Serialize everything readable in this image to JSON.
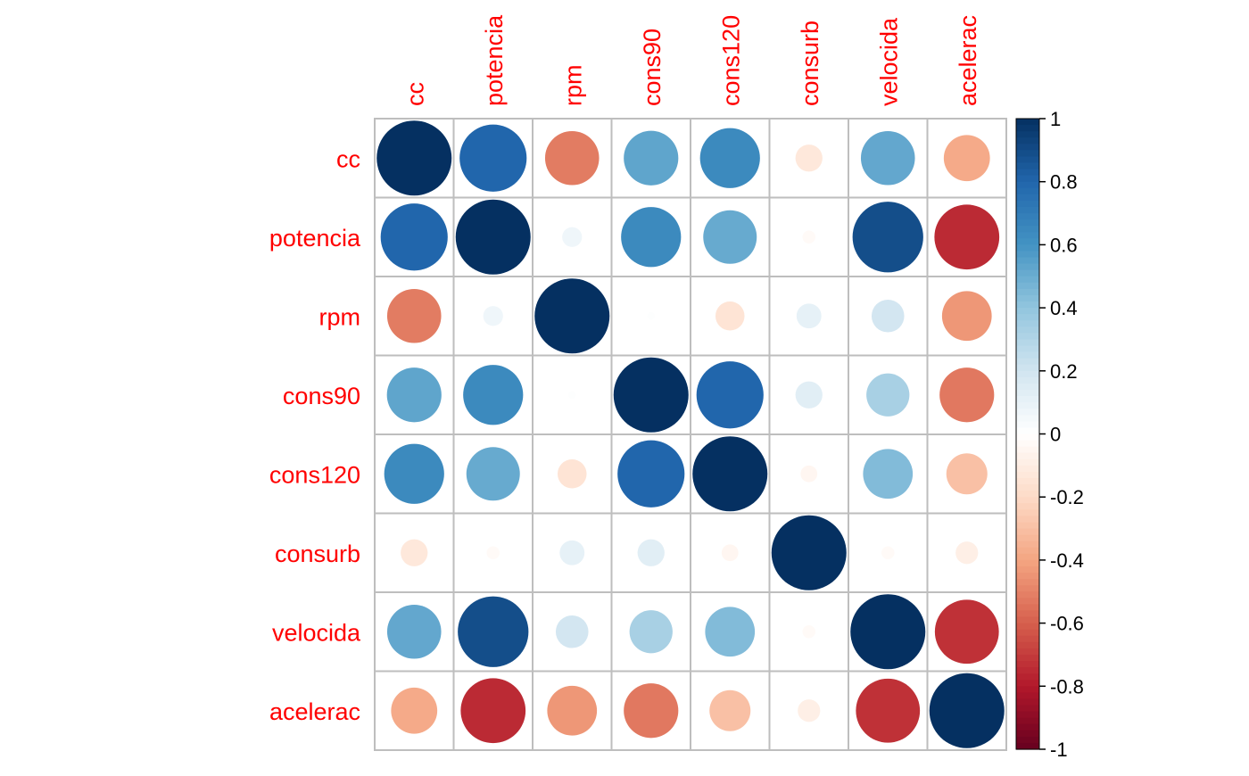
{
  "chart_data": {
    "type": "heatmap",
    "variables": [
      "cc",
      "potencia",
      "rpm",
      "cons90",
      "cons120",
      "consurb",
      "velocida",
      "acelerac"
    ],
    "matrix": [
      [
        1.0,
        0.8,
        -0.52,
        0.53,
        0.64,
        -0.13,
        0.52,
        -0.38
      ],
      [
        0.8,
        1.0,
        0.07,
        0.64,
        0.51,
        -0.03,
        0.89,
        -0.75
      ],
      [
        -0.52,
        0.07,
        1.0,
        0.01,
        -0.15,
        0.11,
        0.19,
        -0.44
      ],
      [
        0.53,
        0.64,
        0.01,
        1.0,
        0.8,
        0.13,
        0.33,
        -0.53
      ],
      [
        0.64,
        0.51,
        -0.15,
        0.8,
        1.0,
        -0.05,
        0.44,
        -0.3
      ],
      [
        -0.13,
        -0.03,
        0.11,
        0.13,
        -0.05,
        1.0,
        -0.03,
        -0.09
      ],
      [
        0.52,
        0.89,
        0.19,
        0.33,
        0.44,
        -0.03,
        1.0,
        -0.73
      ],
      [
        -0.38,
        -0.75,
        -0.44,
        -0.53,
        -0.3,
        -0.09,
        -0.73,
        1.0
      ]
    ],
    "colorbar": {
      "min": -1,
      "max": 1,
      "ticks": [
        "1",
        "0.8",
        "0.6",
        "0.4",
        "0.2",
        "0",
        "-0.2",
        "-0.4",
        "-0.6",
        "-0.8",
        "-1"
      ]
    },
    "label_color": "#FF0000",
    "grid_color": "#BEBEBE"
  }
}
